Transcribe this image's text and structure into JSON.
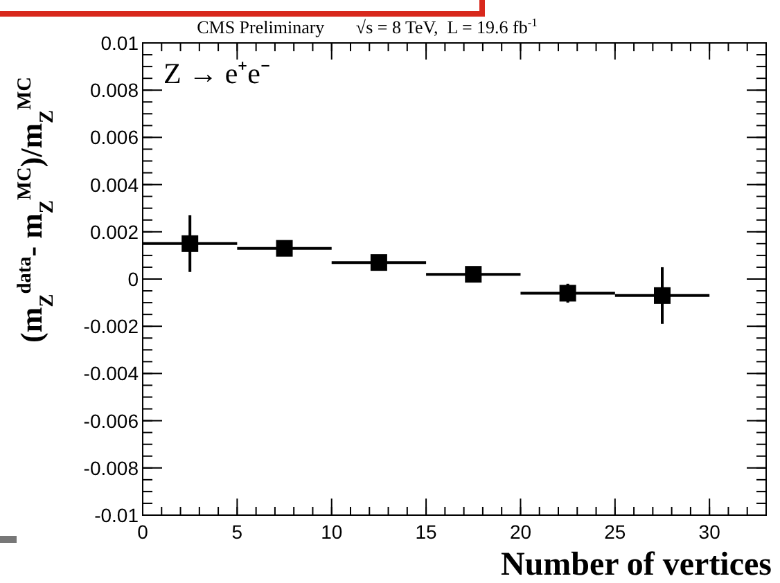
{
  "chart_data": {
    "type": "scatter",
    "title": "CMS Preliminary       √s = 8 TeV,  L = 19.6 fb$^{-1}$",
    "xlabel": "Number of vertices",
    "ylabel": "(m$_{Z}$$^{data}$- m$_{Z}$$^{MC}$)/m$_{Z}$$^{MC}$",
    "annotations": [
      "Z → e⁺e⁻"
    ],
    "x": [
      2.5,
      7.5,
      12.5,
      17.5,
      22.5,
      27.5
    ],
    "series": [
      {
        "color": "#000000",
        "marker": "square",
        "values": [
          0.0015,
          0.0013,
          0.0007,
          0.0002,
          -0.0006,
          -0.0007
        ],
        "errors": [
          0.0012,
          0.0002,
          0.0001,
          0.0001,
          0.0004,
          0.0012
        ],
        "xerrors": [
          2.5,
          2.5,
          2.5,
          2.5,
          2.5,
          2.5
        ]
      }
    ],
    "xlim": [
      0,
      33
    ],
    "xticks": [
      0,
      5,
      10,
      15,
      20,
      25,
      30
    ],
    "ylim": [
      -0.01,
      0.01
    ],
    "yticks": [
      -0.01,
      -0.008,
      -0.006,
      -0.004,
      -0.002,
      0,
      0.002,
      0.004,
      0.006,
      0.008,
      0.01
    ],
    "grid": false
  }
}
